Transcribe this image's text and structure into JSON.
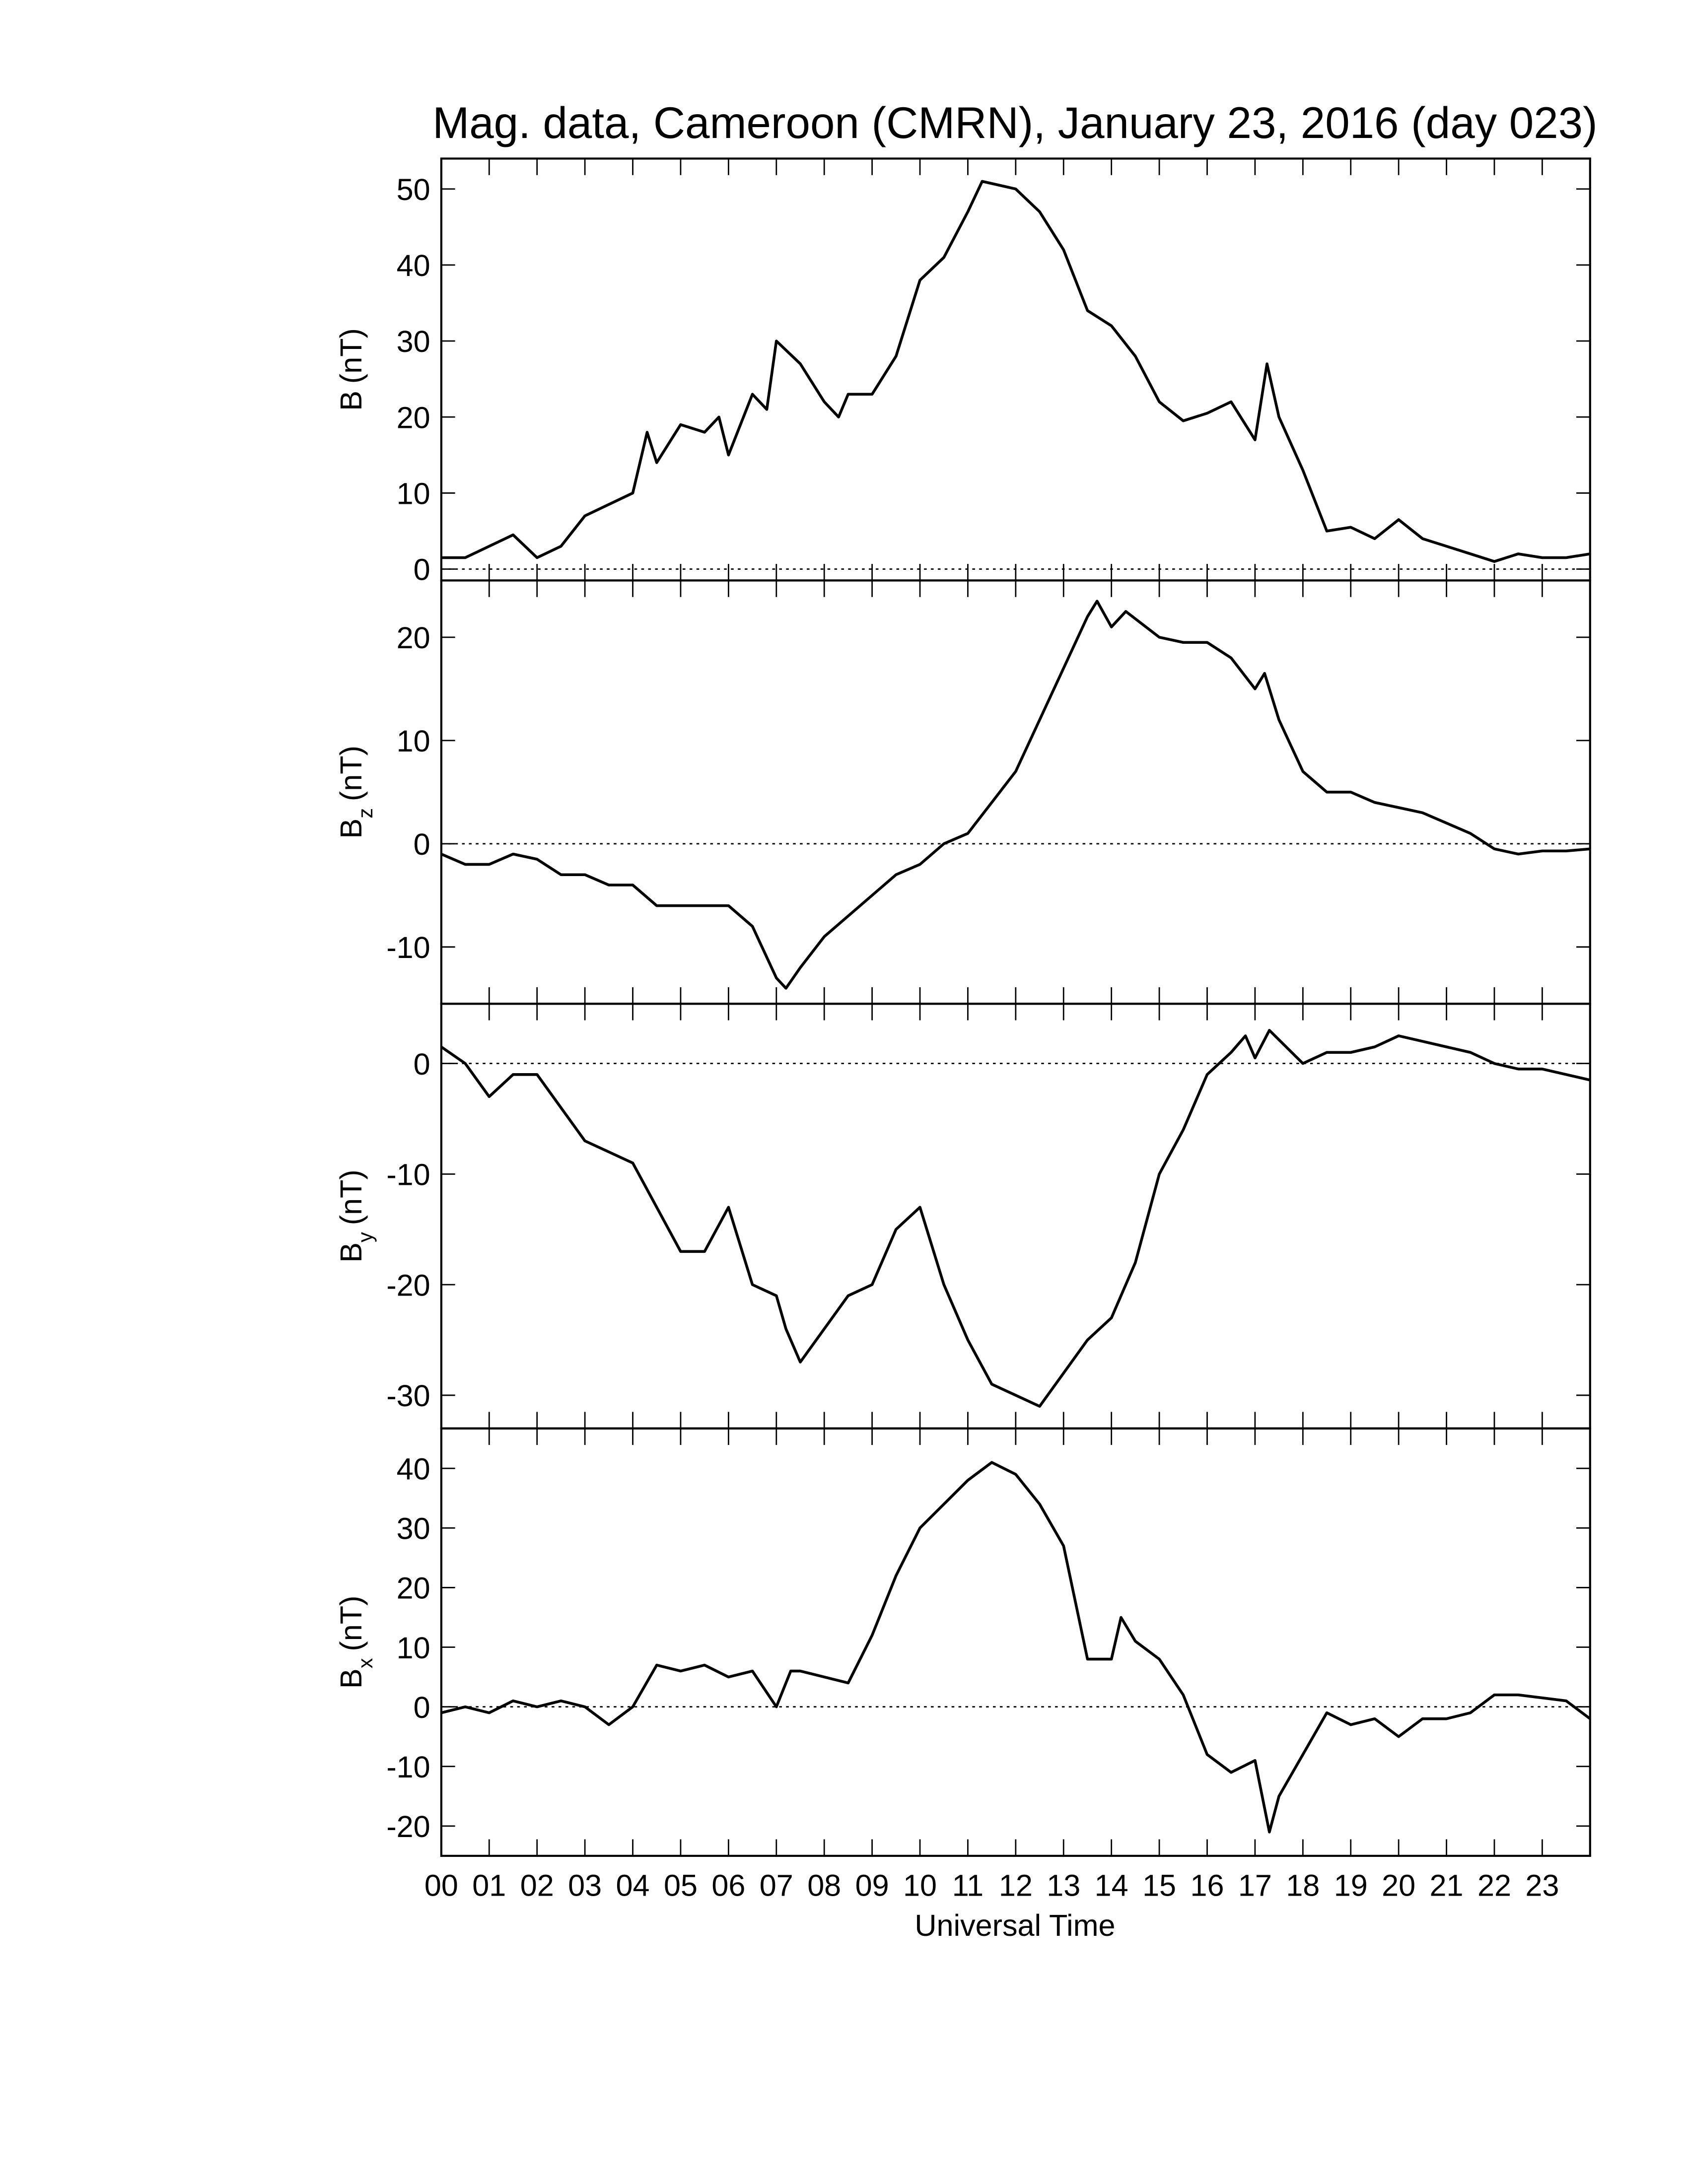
{
  "title": "Mag. data, Cameroon (CMRN), January 23, 2016 (day 023)",
  "xlabel": "Universal Time",
  "xlim": [
    0,
    24
  ],
  "xticks": [
    {
      "value": 0,
      "label": "00"
    },
    {
      "value": 1,
      "label": "01"
    },
    {
      "value": 2,
      "label": "02"
    },
    {
      "value": 3,
      "label": "03"
    },
    {
      "value": 4,
      "label": "04"
    },
    {
      "value": 5,
      "label": "05"
    },
    {
      "value": 6,
      "label": "06"
    },
    {
      "value": 7,
      "label": "07"
    },
    {
      "value": 8,
      "label": "08"
    },
    {
      "value": 9,
      "label": "09"
    },
    {
      "value": 10,
      "label": "10"
    },
    {
      "value": 11,
      "label": "11"
    },
    {
      "value": 12,
      "label": "12"
    },
    {
      "value": 13,
      "label": "13"
    },
    {
      "value": 14,
      "label": "14"
    },
    {
      "value": 15,
      "label": "15"
    },
    {
      "value": 16,
      "label": "16"
    },
    {
      "value": 17,
      "label": "17"
    },
    {
      "value": 18,
      "label": "18"
    },
    {
      "value": 19,
      "label": "19"
    },
    {
      "value": 20,
      "label": "20"
    },
    {
      "value": 21,
      "label": "21"
    },
    {
      "value": 22,
      "label": "22"
    },
    {
      "value": 23,
      "label": "23"
    }
  ],
  "chart_data": [
    {
      "type": "line",
      "ylabel": {
        "main": "B",
        "unit": "(nT)"
      },
      "color": "#000000",
      "ylim": [
        -1.5,
        54
      ],
      "yticks": [
        0,
        10,
        20,
        30,
        40,
        50
      ],
      "hline": 0,
      "x": [
        0,
        0.5,
        1,
        1.5,
        2,
        2.5,
        3,
        3.5,
        4,
        4.3,
        4.5,
        5,
        5.5,
        5.8,
        6,
        6.5,
        6.8,
        7,
        7.5,
        8,
        8.3,
        8.5,
        9,
        9.5,
        10,
        10.5,
        11,
        11.3,
        12,
        12.5,
        13,
        13.5,
        14,
        14.5,
        15,
        15.5,
        16,
        16.5,
        17,
        17.25,
        17.5,
        18,
        18.5,
        19,
        19.5,
        20,
        20.5,
        21,
        21.5,
        22,
        22.5,
        23,
        23.5,
        24
      ],
      "values": [
        1.5,
        1.5,
        3,
        4.5,
        1.5,
        3,
        7,
        8.5,
        10,
        18,
        14,
        19,
        18,
        20,
        15,
        23,
        21,
        30,
        27,
        22,
        20,
        23,
        23,
        28,
        38,
        41,
        47,
        51,
        50,
        47,
        42,
        34,
        32,
        28,
        22,
        19.5,
        20.5,
        22,
        17,
        27,
        20,
        13,
        5,
        5.5,
        4,
        6.5,
        4,
        3,
        2,
        1,
        2,
        1.5,
        1.5,
        2
      ]
    },
    {
      "type": "line",
      "ylabel": {
        "main": "B",
        "sub": "z",
        "unit": "(nT)"
      },
      "color": "#000000",
      "ylim": [
        -15.5,
        25.5
      ],
      "yticks": [
        -10,
        0,
        10,
        20
      ],
      "hline": 0,
      "x": [
        0,
        0.5,
        1,
        1.5,
        2,
        2.5,
        3,
        3.5,
        4,
        4.5,
        5,
        5.5,
        6,
        6.5,
        7,
        7.2,
        7.5,
        8,
        8.5,
        9,
        9.5,
        10,
        10.5,
        11,
        11.5,
        12,
        12.5,
        13,
        13.5,
        13.7,
        14,
        14.3,
        15,
        15.5,
        16,
        16.5,
        17,
        17.2,
        17.5,
        18,
        18.5,
        19,
        19.5,
        20,
        20.5,
        21,
        21.5,
        22,
        22.5,
        23,
        23.5,
        24
      ],
      "values": [
        -1,
        -2,
        -2,
        -1,
        -1.5,
        -3,
        -3,
        -4,
        -4,
        -6,
        -6,
        -6,
        -6,
        -8,
        -13,
        -14,
        -12,
        -9,
        -7,
        -5,
        -3,
        -2,
        0,
        1,
        4,
        7,
        12,
        17,
        22,
        23.5,
        21,
        22.5,
        20,
        19.5,
        19.5,
        18,
        15,
        16.5,
        12,
        7,
        5,
        5,
        4,
        3.5,
        3,
        2,
        1,
        -0.5,
        -1,
        -0.7,
        -0.7,
        -0.5
      ]
    },
    {
      "type": "line",
      "ylabel": {
        "main": "B",
        "sub": "y",
        "unit": "(nT)"
      },
      "color": "#000000",
      "ylim": [
        -33,
        5.4
      ],
      "yticks": [
        -30,
        -20,
        -10,
        0
      ],
      "hline": 0,
      "x": [
        0,
        0.5,
        1,
        1.5,
        2,
        2.5,
        3,
        3.5,
        4,
        4.5,
        5,
        5.5,
        6,
        6.5,
        7,
        7.2,
        7.5,
        8,
        8.5,
        9,
        9.5,
        10,
        10.5,
        11,
        11.5,
        12,
        12.5,
        13,
        13.5,
        14,
        14.5,
        15,
        15.5,
        16,
        16.5,
        16.8,
        17,
        17.3,
        18,
        18.5,
        19,
        19.5,
        20,
        20.5,
        21,
        21.5,
        22,
        22.5,
        23,
        23.5,
        24
      ],
      "values": [
        1.5,
        0,
        -3,
        -1,
        -1,
        -4,
        -7,
        -8,
        -9,
        -13,
        -17,
        -17,
        -13,
        -20,
        -21,
        -24,
        -27,
        -24,
        -21,
        -20,
        -15,
        -13,
        -20,
        -25,
        -29,
        -30,
        -31,
        -28,
        -25,
        -23,
        -18,
        -10,
        -6,
        -1,
        1,
        2.5,
        0.5,
        3,
        0,
        1,
        1,
        1.5,
        2.5,
        2,
        1.5,
        1,
        0,
        -0.5,
        -0.5,
        -1,
        -1.5
      ]
    },
    {
      "type": "line",
      "ylabel": {
        "main": "B",
        "sub": "x",
        "unit": "(nT)"
      },
      "color": "#000000",
      "ylim": [
        -25,
        46.7
      ],
      "yticks": [
        -20,
        -10,
        0,
        10,
        20,
        30,
        40
      ],
      "hline": 0,
      "x": [
        0,
        0.5,
        1,
        1.5,
        2,
        2.5,
        3,
        3.5,
        4,
        4.5,
        5,
        5.5,
        6,
        6.5,
        7,
        7.3,
        7.5,
        8,
        8.5,
        9,
        9.5,
        10,
        10.5,
        11,
        11.5,
        12,
        12.5,
        13,
        13.5,
        14,
        14.2,
        14.5,
        15,
        15.5,
        16,
        16.5,
        17,
        17.3,
        17.5,
        18,
        18.5,
        19,
        19.5,
        20,
        20.5,
        21,
        21.5,
        22,
        22.5,
        23,
        23.5,
        24
      ],
      "values": [
        -1,
        0,
        -1,
        1,
        0,
        1,
        0,
        -3,
        0,
        7,
        6,
        7,
        5,
        6,
        0,
        6,
        6,
        5,
        4,
        12,
        22,
        30,
        34,
        38,
        41,
        39,
        34,
        27,
        8,
        8,
        15,
        11,
        8,
        2,
        -8,
        -11,
        -9,
        -21,
        -15,
        -8,
        -1,
        -3,
        -2,
        -5,
        -2,
        -2,
        -1,
        2,
        2,
        1.5,
        1,
        -2
      ]
    }
  ]
}
